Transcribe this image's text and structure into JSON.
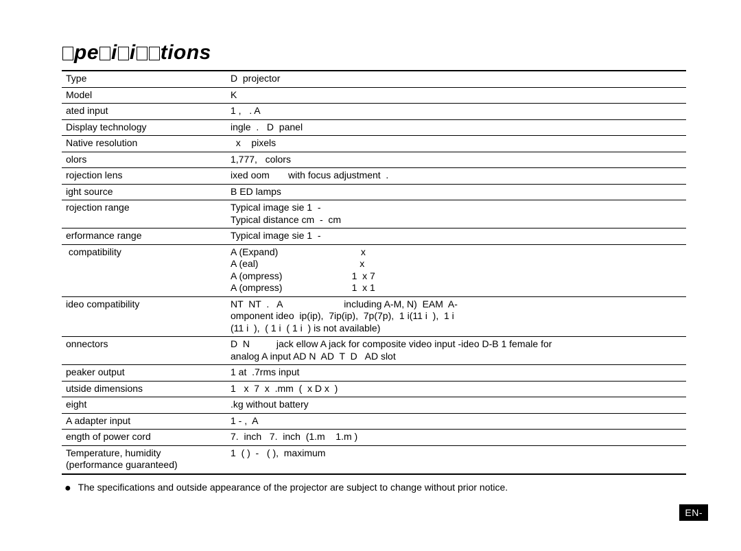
{
  "title_parts": [
    "pe",
    "i",
    "i",
    "tions"
  ],
  "table": {
    "rows": [
      {
        "label": "Type",
        "value": "D  projector"
      },
      {
        "label": "Model",
        "value": "K"
      },
      {
        "label": "ated input",
        "value": "1 ,   . A"
      },
      {
        "label": "Display technology",
        "value": "ingle  .   D  panel"
      },
      {
        "label": "Native resolution",
        "value": "  x    pixels"
      },
      {
        "label": "olors",
        "value": "1,777,   colors"
      },
      {
        "label": "rojection lens",
        "value": "ixed oom       with focus adjustment  ."
      },
      {
        "label": "ight source",
        "value": "B ED lamps"
      },
      {
        "label": "rojection range",
        "value": "Typical image sie 1  -\nTypical distance cm  -  cm"
      },
      {
        "label": "erformance range",
        "value": "Typical image sie 1  -"
      },
      {
        "label": " compatibility",
        "value": "A (Expand)                               x\nA (eal)                                      x\nA (ompress)                          1  x 7\nA (ompress)                          1  x 1"
      },
      {
        "label": "ideo compatibility",
        "value": "NT  NT  .   A                       including A-M, N)  EAM  A-\nomponent ideo  ip(ip),  7ip(ip),  7p(7p),  1 i(11 i  ),  1 i\n(11 i  ),  ( 1 i  ( 1 i  ) is not available)"
      },
      {
        "label": "onnectors",
        "value": "D  N          jack ellow A jack for composite video input -ideo D-B 1 female for\nanalog A input AD N  AD  T  D   AD slot"
      },
      {
        "label": "peaker output",
        "value": "1 at  .7rms input"
      },
      {
        "label": "utside dimensions",
        "value": "1   x  7  x  .mm  (  x D x  )"
      },
      {
        "label": "eight",
        "value": ".kg without battery"
      },
      {
        "label": "A adapter input",
        "value": "1 - ,  A"
      },
      {
        "label": "ength of power cord",
        "value": "7.  inch   7.  inch  (1.m    1.m )"
      },
      {
        "label": "Temperature, humidity\n(performance guaranteed)",
        "value": "1  ( )  -   ( ),  maximum"
      }
    ]
  },
  "note": "The specifications and outside appearance of the projector are subject to change without prior notice.",
  "footer": "EN-",
  "colors": {
    "text": "#000000",
    "background": "#ffffff",
    "footer_bg": "#000000",
    "footer_text": "#ffffff"
  },
  "fontsizes": {
    "title": 30,
    "body": 14
  }
}
